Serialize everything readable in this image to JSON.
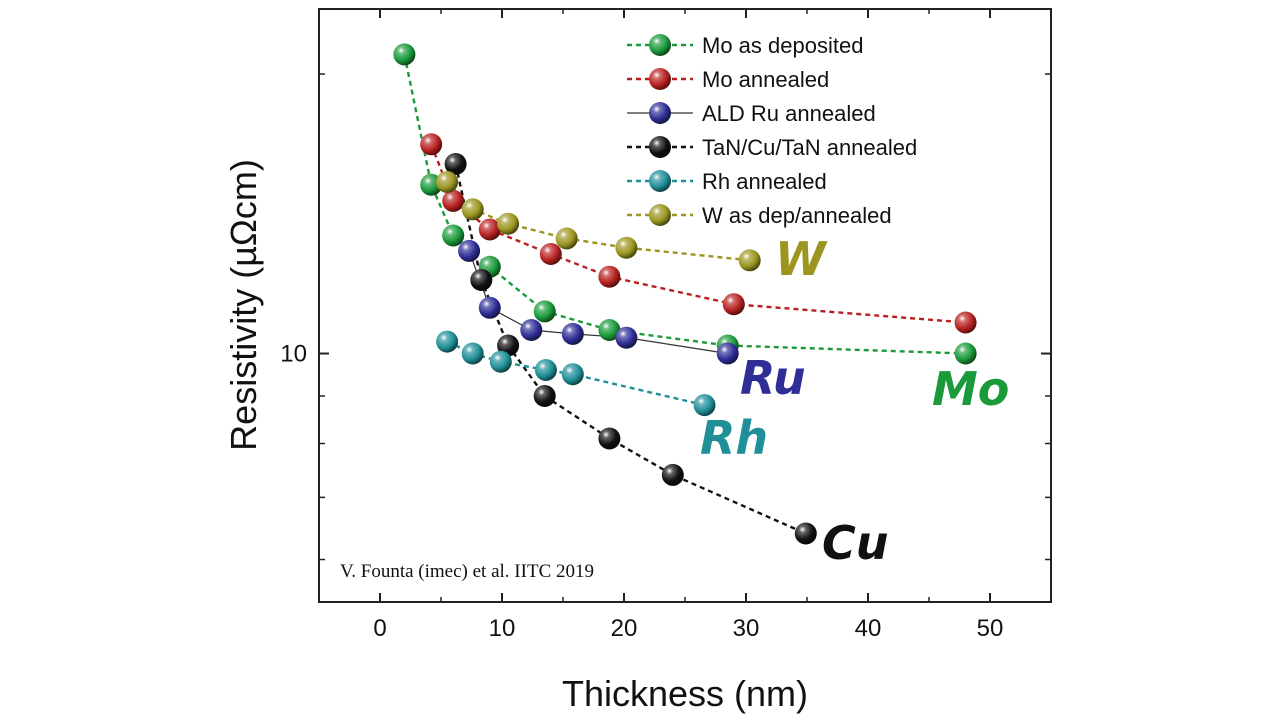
{
  "chart_data": {
    "type": "scatter",
    "title": "",
    "xlabel": "Thickness (nm)",
    "ylabel": "Resistivity (µΩcm)",
    "xlim": [
      -5,
      55
    ],
    "ylim": [
      5.4,
      23.5
    ],
    "yscale": "log",
    "xticks": [
      0,
      10,
      20,
      30,
      40,
      50
    ],
    "yticks": [
      10
    ],
    "grid": false,
    "legend_position": "top-right",
    "credit": "V. Founta (imec) et al. IITC 2019",
    "series": [
      {
        "name": "Mo as deposited",
        "tag": "Mo",
        "color": "#1a9a3a",
        "line_style": "dashed",
        "x": [
          2,
          4.2,
          6,
          9,
          13.5,
          18.8,
          28.5,
          48
        ],
        "y": [
          21.0,
          15.2,
          13.4,
          12.4,
          11.1,
          10.6,
          10.2,
          10.0
        ]
      },
      {
        "name": "Mo annealed",
        "tag": "",
        "color": "#b82020",
        "line_style": "dashed",
        "x": [
          4.2,
          6,
          9,
          14,
          18.8,
          29,
          48
        ],
        "y": [
          16.8,
          14.6,
          13.6,
          12.8,
          12.1,
          11.3,
          10.8
        ]
      },
      {
        "name": "ALD Ru annealed",
        "tag": "Ru",
        "color": "#2e2e96",
        "line_style": "solid",
        "x": [
          7.3,
          9,
          12.4,
          15.8,
          20.2,
          28.5
        ],
        "y": [
          12.9,
          11.2,
          10.6,
          10.5,
          10.4,
          10.0
        ]
      },
      {
        "name": "TaN/Cu/TaN annealed",
        "tag": "Cu",
        "color": "#111111",
        "line_style": "dashed",
        "x": [
          6.2,
          8.3,
          10.5,
          13.5,
          18.8,
          24,
          34.9
        ],
        "y": [
          16.0,
          12.0,
          10.2,
          9.0,
          8.1,
          7.4,
          6.4
        ]
      },
      {
        "name": "Rh annealed",
        "tag": "Rh",
        "color": "#1f8f98",
        "line_style": "dashed",
        "x": [
          5.5,
          7.6,
          9.9,
          13.6,
          15.8,
          26.6
        ],
        "y": [
          10.3,
          10.0,
          9.8,
          9.6,
          9.5,
          8.8
        ]
      },
      {
        "name": "W as dep/annealed",
        "tag": "W",
        "color": "#9c9620",
        "line_style": "dashed",
        "x": [
          5.5,
          7.6,
          10.5,
          15.3,
          20.2,
          30.3
        ],
        "y": [
          15.3,
          14.3,
          13.8,
          13.3,
          13.0,
          12.6
        ]
      }
    ]
  }
}
